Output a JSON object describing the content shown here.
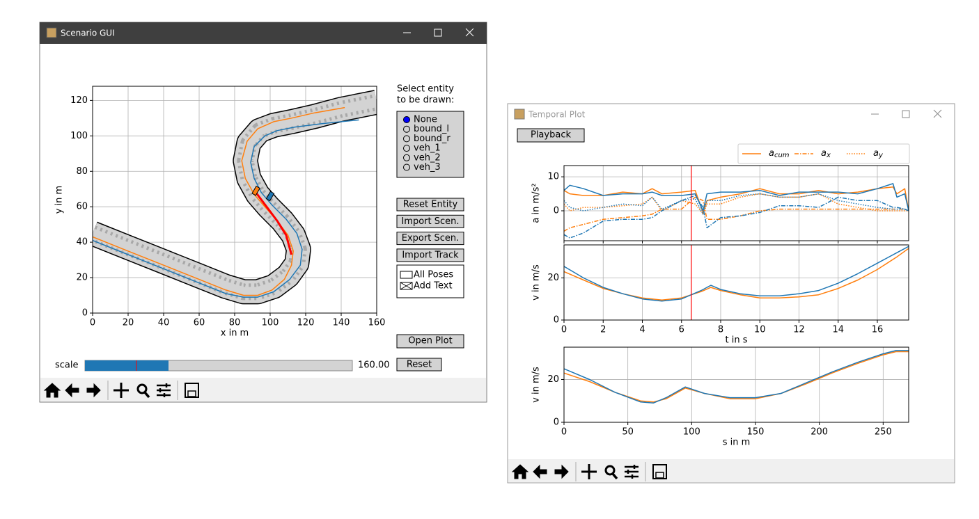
{
  "scenario_gui": {
    "title": "Scenario GUI",
    "track_plot": {
      "type": "line",
      "xlabel": "x in m",
      "ylabel": "y in m",
      "xlim": [
        0,
        160
      ],
      "ylim": [
        0,
        128
      ],
      "xticks": [
        0,
        20,
        40,
        60,
        80,
        100,
        120,
        140,
        160
      ],
      "yticks": [
        0,
        20,
        40,
        60,
        80,
        100,
        120
      ],
      "grid": true,
      "series": [
        {
          "style": "road",
          "color": "#d3d3d3",
          "x": [
            0,
            20,
            40,
            60,
            75,
            85,
            93,
            102,
            110,
            115,
            116,
            113,
            107,
            99,
            93,
            88,
            86,
            88,
            94,
            102,
            112,
            125,
            140,
            160
          ],
          "y": [
            45,
            37,
            29,
            21,
            15,
            12,
            12,
            15,
            21,
            28,
            36,
            44,
            52,
            60,
            67,
            76,
            86,
            96,
            103,
            106,
            108,
            111,
            115,
            119
          ]
        },
        {
          "style": "solid",
          "color": "#ff7f0e",
          "x": [
            0,
            20,
            40,
            60,
            75,
            85,
            93,
            101,
            108,
            112,
            113,
            110,
            104,
            97,
            91,
            86,
            84,
            87,
            93,
            102,
            112,
            125,
            142
          ],
          "y": [
            43,
            35,
            27,
            19,
            13,
            10,
            10,
            13,
            19,
            27,
            35,
            44,
            52,
            60,
            67,
            76,
            86,
            97,
            104,
            108,
            110,
            113,
            116
          ]
        },
        {
          "style": "solid",
          "color": "#1f77b4",
          "x": [
            0,
            20,
            40,
            60,
            75,
            85,
            93,
            102,
            111,
            117,
            118,
            115,
            109,
            101,
            95,
            91,
            89,
            91,
            97,
            104,
            114,
            130,
            150
          ],
          "y": [
            41,
            33,
            25,
            17,
            11,
            9,
            9,
            12,
            19,
            27,
            36,
            45,
            53,
            61,
            68,
            76,
            85,
            94,
            100,
            103,
            105,
            107,
            109
          ]
        },
        {
          "style": "thick",
          "color": "#ff0000",
          "x": [
            92,
            98,
            104,
            109,
            112
          ],
          "y": [
            68,
            60,
            52,
            44,
            33
          ]
        }
      ],
      "vehicles": [
        {
          "x": 92,
          "y": 69,
          "color": "#ff7f0e"
        },
        {
          "x": 100,
          "y": 66,
          "color": "#1f77b4"
        }
      ]
    },
    "select_label": [
      "Select entity",
      "to be drawn:"
    ],
    "radio_options": [
      "None",
      "bound_l",
      "bound_r",
      "veh_1",
      "veh_2",
      "veh_3"
    ],
    "radio_selected": 0,
    "buttons": [
      "Reset Entity",
      "Import Scen.",
      "Export Scen.",
      "Import Track"
    ],
    "checkboxes": [
      {
        "label": "All Poses",
        "checked": false
      },
      {
        "label": "Add Text",
        "checked": true
      }
    ],
    "open_plot": "Open Plot",
    "reset": "Reset",
    "slider": {
      "label": "scale",
      "value_text": "160.00"
    }
  },
  "temporal_plot": {
    "title": "Temporal Plot",
    "playback": "Playback",
    "cursor_t": 6.5,
    "accel": {
      "type": "line",
      "ylabel": "a in m/s²",
      "xlim": [
        0,
        17.6
      ],
      "ylim": [
        -8.8,
        13.3
      ],
      "yticks": [
        0,
        10
      ],
      "grid": true,
      "x": [
        0,
        0.3,
        1,
        2,
        3,
        4,
        4.5,
        5,
        6,
        6.7,
        7.1,
        7.3,
        8,
        9,
        10,
        11,
        12,
        13,
        14,
        15,
        16,
        16.8,
        17,
        17.4,
        17.6
      ],
      "series": [
        {
          "name": "a",
          "subscript": "cum",
          "color": "#ff7f0e",
          "linestyle": "solid",
          "values": [
            6,
            5,
            4.5,
            4.5,
            5.5,
            5,
            6.5,
            5,
            5.5,
            6,
            -0.5,
            3,
            4,
            5,
            6.5,
            5,
            5,
            6,
            5,
            5.5,
            6.5,
            7,
            5,
            6.5,
            0
          ]
        },
        {
          "name": "a",
          "subscript": "x",
          "color": "#ff7f0e",
          "linestyle": "dashdot",
          "values": [
            -6,
            -5,
            -4,
            -2.5,
            -2,
            -1.5,
            -1,
            0.5,
            0.5,
            4,
            3,
            -2.5,
            -2.5,
            -1.5,
            0,
            0.5,
            0.5,
            0.5,
            0.5,
            0.5,
            0.5,
            0.5,
            0.5,
            0.5,
            0
          ]
        },
        {
          "name": "a",
          "subscript": "y",
          "color": "#ff7f0e",
          "linestyle": "dotted",
          "values": [
            2,
            0,
            1,
            1,
            1.5,
            2,
            4,
            0,
            3,
            2,
            -1,
            2,
            2,
            4,
            5,
            4,
            4,
            5,
            2,
            1,
            0,
            0,
            0,
            0,
            0
          ]
        },
        {
          "color": "#1f77b4",
          "linestyle": "solid",
          "values": [
            6,
            7.5,
            6.5,
            4.5,
            5,
            5,
            5.5,
            4.5,
            4.5,
            5,
            0,
            5,
            5.5,
            5.5,
            6,
            4.5,
            5.5,
            5.5,
            5.5,
            5,
            6.5,
            8,
            4,
            5,
            0
          ]
        },
        {
          "color": "#1f77b4",
          "linestyle": "dashdot",
          "values": [
            -7,
            -8,
            -6.5,
            -3,
            -2.5,
            -2.5,
            -2,
            0,
            3,
            4.5,
            1,
            -5,
            -2,
            -1.5,
            -0.5,
            1.5,
            1.5,
            1,
            4,
            3,
            3,
            1,
            1,
            0.5,
            0
          ]
        },
        {
          "color": "#1f77b4",
          "linestyle": "dotted",
          "values": [
            3,
            1,
            0,
            1,
            2,
            1.5,
            4,
            0.5,
            3,
            3.5,
            -1,
            3,
            3,
            4.5,
            5,
            4,
            4,
            5,
            3,
            2,
            1,
            0.5,
            0.5,
            0.5,
            0
          ]
        }
      ]
    },
    "vel_t": {
      "type": "line",
      "xlabel": "t in s",
      "ylabel": "v in m/s",
      "xlim": [
        0,
        17.6
      ],
      "ylim": [
        0,
        35.7
      ],
      "xticks": [
        0,
        2,
        4,
        6,
        8,
        10,
        12,
        14,
        16
      ],
      "yticks": [
        0,
        20
      ],
      "grid": true,
      "x": [
        0,
        1,
        2,
        3,
        4,
        5,
        6,
        7,
        7.5,
        8,
        9,
        10,
        11,
        12,
        13,
        14,
        15,
        16,
        17,
        17.6
      ],
      "series": [
        {
          "color": "#ff7f0e",
          "linestyle": "solid",
          "values": [
            23,
            19,
            15,
            12.5,
            10.5,
            9.5,
            10.5,
            13.5,
            15.5,
            14,
            12,
            10.5,
            10.5,
            11,
            12,
            15,
            19,
            24,
            30,
            34
          ]
        },
        {
          "color": "#1f77b4",
          "linestyle": "solid",
          "values": [
            25.5,
            20,
            15.5,
            12.5,
            10,
            9,
            10,
            14,
            16.5,
            14.5,
            12.5,
            11.5,
            11.5,
            12.5,
            14,
            17.5,
            22,
            27,
            32,
            35
          ]
        }
      ]
    },
    "vel_s": {
      "type": "line",
      "xlabel": "s in m",
      "ylabel": "v in m/s",
      "xlim": [
        0,
        270
      ],
      "ylim": [
        0,
        35.1
      ],
      "xticks": [
        0,
        50,
        100,
        150,
        200,
        250
      ],
      "yticks": [
        0,
        20
      ],
      "grid": true,
      "x": [
        0,
        20,
        40,
        60,
        70,
        80,
        95,
        110,
        130,
        150,
        170,
        190,
        210,
        230,
        250,
        260,
        270
      ],
      "series": [
        {
          "color": "#ff7f0e",
          "linestyle": "solid",
          "values": [
            23,
            19,
            14,
            10,
            9.5,
            11,
            16,
            13.5,
            11,
            11,
            13.5,
            18,
            23,
            27.5,
            31.5,
            33,
            33
          ]
        },
        {
          "color": "#1f77b4",
          "linestyle": "solid",
          "values": [
            25,
            20,
            14,
            9.5,
            9,
            11.5,
            16.5,
            13.5,
            11.5,
            11.5,
            13.5,
            18.5,
            23.5,
            28,
            32,
            33.5,
            33.5
          ]
        }
      ]
    }
  }
}
